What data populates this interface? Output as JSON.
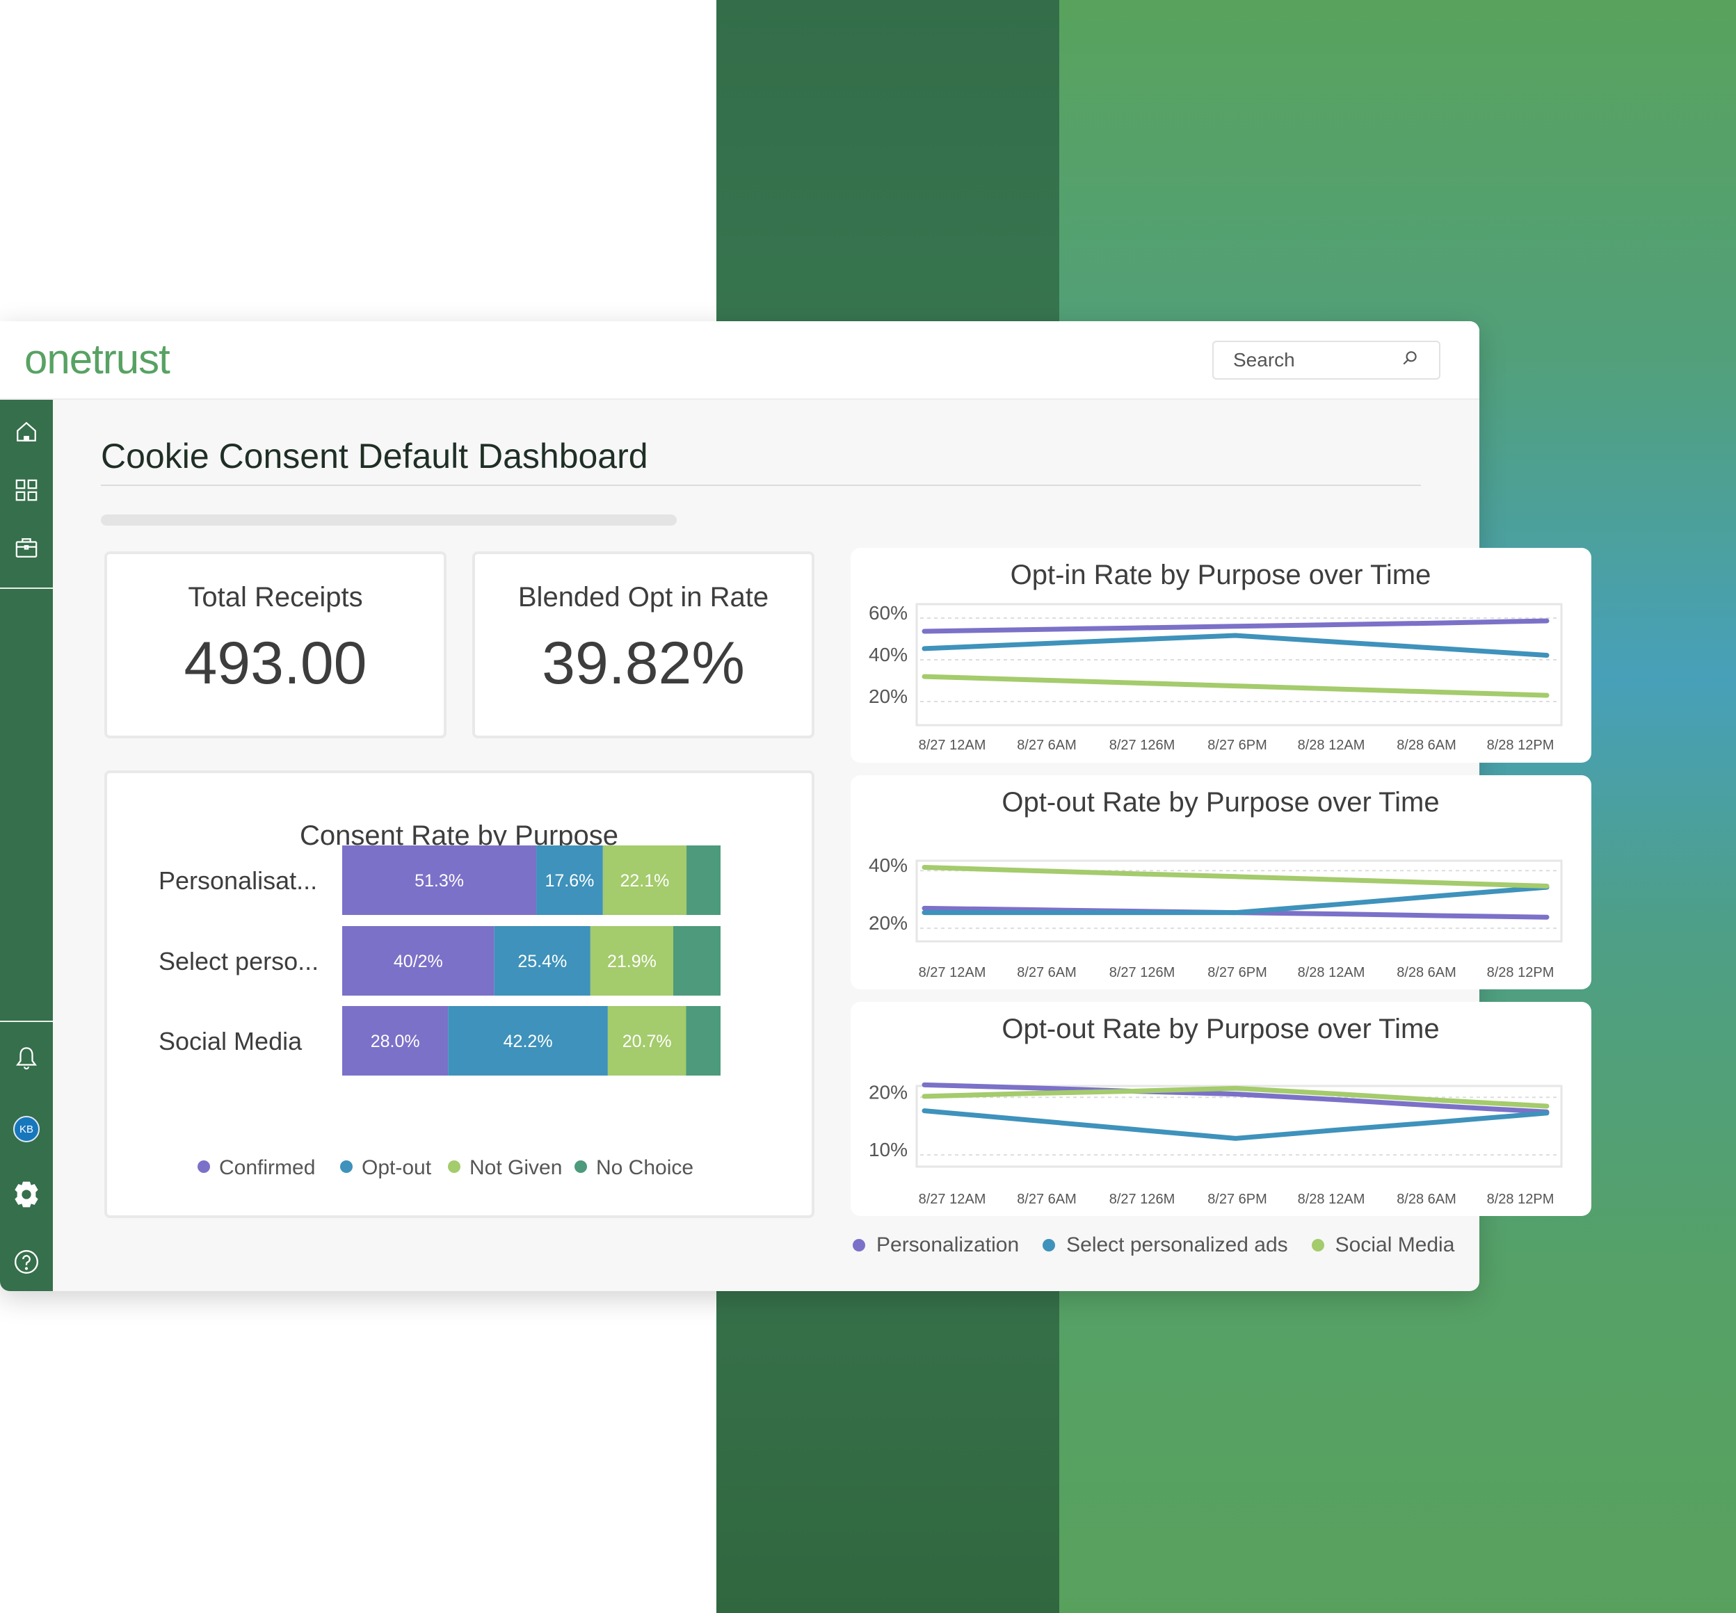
{
  "app": {
    "logo": "onetrust",
    "search_placeholder": "Search"
  },
  "sidebar": {
    "avatar_initials": "KB"
  },
  "page": {
    "title": "Cookie Consent Default Dashboard"
  },
  "kpis": [
    {
      "label": "Total Receipts",
      "value": "493.00"
    },
    {
      "label": "Blended Opt in Rate",
      "value": "39.82%"
    }
  ],
  "colors": {
    "purple": "#7b71c8",
    "blue": "#3e92bb",
    "light_green": "#a4cb6c",
    "teal": "#4d9a7c",
    "sidebar": "#356f4b",
    "logo": "#57a263"
  },
  "chart_data": [
    {
      "type": "bar",
      "orientation": "horizontal",
      "stacked": true,
      "title": "Consent Rate by Purpose",
      "categories": [
        "Personalisat...",
        "Select perso...",
        "Social Media"
      ],
      "series": [
        {
          "name": "Confirmed",
          "color": "#7b71c8",
          "values": [
            51.3,
            40.2,
            28.0
          ],
          "labels": [
            "51.3%",
            "40/2%",
            "28.0%"
          ]
        },
        {
          "name": "Opt-out",
          "color": "#3e92bb",
          "values": [
            17.6,
            25.4,
            42.2
          ],
          "labels": [
            "17.6%",
            "25.4%",
            "42.2%"
          ]
        },
        {
          "name": "Not Given",
          "color": "#a4cb6c",
          "values": [
            22.1,
            21.9,
            20.7
          ],
          "labels": [
            "22.1%",
            "21.9%",
            "20.7%"
          ]
        },
        {
          "name": "No Choice",
          "color": "#4d9a7c",
          "values": [
            9.0,
            12.5,
            9.1
          ],
          "labels": [
            "",
            "",
            ""
          ]
        }
      ],
      "legend": "bottom"
    },
    {
      "type": "line",
      "title": "Opt-in Rate by Purpose over Time",
      "x": [
        "8/27 12AM",
        "8/27 6AM",
        "8/27 126M",
        "8/27 6PM",
        "8/28 12AM",
        "8/28 6AM",
        "8/28 12PM"
      ],
      "yticks": [
        {
          "v": 60,
          "label": "60%"
        },
        {
          "v": 40,
          "label": "40%"
        },
        {
          "v": 20,
          "label": "20%"
        }
      ],
      "ylim": [
        6,
        64
      ],
      "series": [
        {
          "name": "Personalization",
          "color": "#7b71c8",
          "values": [
            51,
            51.8,
            52.6,
            53.4,
            54.2,
            55,
            56
          ]
        },
        {
          "name": "Select personalized ads",
          "color": "#3e92bb",
          "values": [
            42.7,
            44.8,
            46.9,
            49,
            45.8,
            42.7,
            39.5
          ]
        },
        {
          "name": "Social Media",
          "color": "#a4cb6c",
          "values": [
            29.3,
            27.8,
            26.3,
            24.8,
            23.3,
            21.8,
            20.3
          ]
        }
      ],
      "legend": "bottom"
    },
    {
      "type": "line",
      "title": "Opt-out Rate by Purpose over Time",
      "x": [
        "8/27 12AM",
        "8/27 6AM",
        "8/27 126M",
        "8/27 6PM",
        "8/28 12AM",
        "8/28 6AM",
        "8/28 12PM"
      ],
      "yticks": [
        {
          "v": 40,
          "label": "40%"
        },
        {
          "v": 20,
          "label": "20%"
        }
      ],
      "ylim": [
        13.5,
        41.5
      ],
      "series": [
        {
          "name": "Personalization",
          "color": "#7b71c8",
          "values": [
            25,
            24.5,
            24,
            23.5,
            23,
            22.4,
            21.9
          ]
        },
        {
          "name": "Select personalized ads",
          "color": "#3e92bb",
          "values": [
            23.5,
            23.5,
            23.5,
            23.5,
            26.4,
            29.4,
            32.3
          ]
        },
        {
          "name": "Social Media",
          "color": "#a4cb6c",
          "values": [
            39.2,
            38.1,
            37,
            36,
            34.9,
            33.8,
            32.7
          ]
        }
      ]
    },
    {
      "type": "line",
      "title": "Opt-out Rate by Purpose over Time",
      "x": [
        "8/27 12AM",
        "8/27 6AM",
        "8/27 126M",
        "8/27 6PM",
        "8/28 12AM",
        "8/28 6AM",
        "8/28 12PM"
      ],
      "yticks": [
        {
          "v": 20,
          "label": "20%"
        },
        {
          "v": 10,
          "label": "10%"
        }
      ],
      "ylim": [
        7,
        21
      ],
      "series": [
        {
          "name": "Personalization",
          "color": "#7b71c8",
          "values": [
            21.2,
            20.7,
            20.1,
            19.6,
            18.6,
            17.5,
            16.5
          ]
        },
        {
          "name": "Select personalized ads",
          "color": "#3e92bb",
          "values": [
            16.7,
            15.1,
            13.5,
            11.9,
            13.4,
            14.8,
            16.3
          ]
        },
        {
          "name": "Social Media",
          "color": "#a4cb6c",
          "values": [
            19.2,
            19.7,
            20.1,
            20.6,
            19.6,
            18.5,
            17.5
          ]
        }
      ]
    }
  ]
}
